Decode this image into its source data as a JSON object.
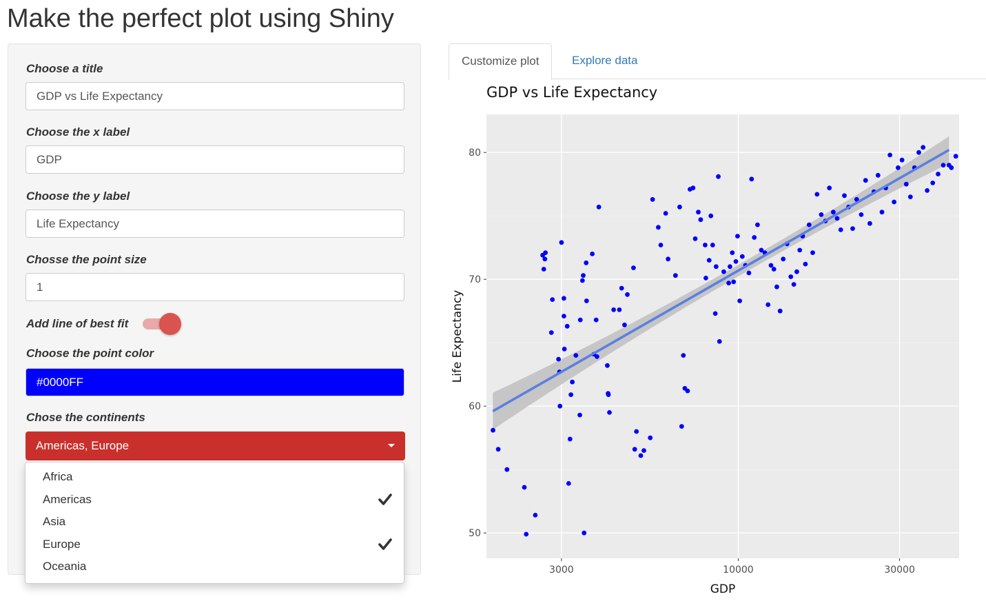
{
  "page": {
    "title": "Make the perfect plot using Shiny"
  },
  "sidebar": {
    "title_label": "Choose a title",
    "title_value": "GDP vs Life Expectancy",
    "xlabel_label": "Choose the x label",
    "xlabel_value": "GDP",
    "ylabel_label": "Choose the y label",
    "ylabel_value": "Life Expectancy",
    "size_label": "Chosse the point size",
    "size_value": "1",
    "fit_label": "Add line of best fit",
    "fit_enabled": true,
    "color_label": "Choose the point color",
    "color_value": "#0000FF",
    "continents_label": "Chose the continents",
    "continents_selected": "Americas, Europe",
    "continents_options": [
      {
        "label": "Africa",
        "checked": false
      },
      {
        "label": "Americas",
        "checked": true
      },
      {
        "label": "Asia",
        "checked": false
      },
      {
        "label": "Europe",
        "checked": true
      },
      {
        "label": "Oceania",
        "checked": false
      }
    ]
  },
  "colors": {
    "select_bg": "#c9302c",
    "toggle_accent": "#d9534f",
    "point_color": "#0000FF",
    "fit_line": "#5b7fe0",
    "panel_bg": "#ebebeb"
  },
  "icons": {
    "check": "check-icon",
    "caret": "caret-down-icon"
  },
  "tabs": [
    {
      "label": "Customize plot",
      "active": true
    },
    {
      "label": "Explore data",
      "active": false
    }
  ],
  "chart_data": {
    "type": "scatter",
    "title": "GDP vs Life Expectancy",
    "xlabel": "GDP",
    "ylabel": "Life Expectancy",
    "x_scale": "log10",
    "xlim": [
      1800,
      45000
    ],
    "ylim": [
      48,
      83
    ],
    "x_ticks": [
      3000,
      10000,
      30000
    ],
    "y_ticks": [
      50,
      60,
      70,
      80
    ],
    "grid": true,
    "trend_line": {
      "x": [
        1880,
        42000
      ],
      "y": [
        59.6,
        80.2
      ],
      "confidence_band": true
    },
    "points": [
      [
        1882,
        58.1
      ],
      [
        1950,
        56.6
      ],
      [
        2070,
        55.0
      ],
      [
        2330,
        53.6
      ],
      [
        2360,
        49.9
      ],
      [
        2510,
        51.4
      ],
      [
        2640,
        71.9
      ],
      [
        2680,
        71.6
      ],
      [
        2660,
        70.8
      ],
      [
        2690,
        72.1
      ],
      [
        2820,
        68.4
      ],
      [
        2800,
        65.8
      ],
      [
        3000,
        72.9
      ],
      [
        3050,
        68.5
      ],
      [
        3050,
        67.1
      ],
      [
        3120,
        66.3
      ],
      [
        3060,
        64.5
      ],
      [
        2940,
        63.7
      ],
      [
        2960,
        62.7
      ],
      [
        2970,
        60.0
      ],
      [
        3150,
        53.9
      ],
      [
        3180,
        57.4
      ],
      [
        3200,
        60.9
      ],
      [
        3230,
        61.9
      ],
      [
        3310,
        64.0
      ],
      [
        3500,
        50.0
      ],
      [
        3400,
        59.3
      ],
      [
        3410,
        66.8
      ],
      [
        3460,
        69.9
      ],
      [
        3480,
        70.3
      ],
      [
        3550,
        71.3
      ],
      [
        3700,
        72.0
      ],
      [
        3560,
        68.3
      ],
      [
        3800,
        66.8
      ],
      [
        3820,
        63.9
      ],
      [
        3740,
        64.1
      ],
      [
        3870,
        75.7
      ],
      [
        4100,
        63.2
      ],
      [
        4120,
        61.0
      ],
      [
        4130,
        60.9
      ],
      [
        4160,
        59.5
      ],
      [
        4280,
        67.6
      ],
      [
        4450,
        67.6
      ],
      [
        4520,
        69.3
      ],
      [
        4610,
        66.4
      ],
      [
        4700,
        68.8
      ],
      [
        4900,
        70.9
      ],
      [
        4940,
        56.6
      ],
      [
        5000,
        58.0
      ],
      [
        5150,
        56.1
      ],
      [
        5260,
        56.5
      ],
      [
        5490,
        57.5
      ],
      [
        5580,
        76.3
      ],
      [
        5800,
        74.1
      ],
      [
        5900,
        72.7
      ],
      [
        6100,
        75.2
      ],
      [
        6200,
        71.6
      ],
      [
        6520,
        70.3
      ],
      [
        6710,
        75.7
      ],
      [
        6800,
        58.4
      ],
      [
        6880,
        64.0
      ],
      [
        6950,
        61.4
      ],
      [
        7080,
        61.2
      ],
      [
        7200,
        77.1
      ],
      [
        7350,
        77.2
      ],
      [
        7460,
        73.2
      ],
      [
        7620,
        75.3
      ],
      [
        7740,
        74.7
      ],
      [
        7980,
        72.7
      ],
      [
        8020,
        70.1
      ],
      [
        8200,
        71.5
      ],
      [
        8300,
        75.0
      ],
      [
        8400,
        72.7
      ],
      [
        8550,
        67.3
      ],
      [
        8600,
        71.0
      ],
      [
        8800,
        65.1
      ],
      [
        8730,
        78.1
      ],
      [
        9060,
        70.6
      ],
      [
        9370,
        69.7
      ],
      [
        9450,
        71.0
      ],
      [
        9600,
        72.1
      ],
      [
        9690,
        69.8
      ],
      [
        9840,
        71.4
      ],
      [
        9950,
        73.4
      ],
      [
        10100,
        68.3
      ],
      [
        10280,
        71.8
      ],
      [
        10500,
        71.1
      ],
      [
        10750,
        70.5
      ],
      [
        10950,
        77.9
      ],
      [
        11150,
        73.3
      ],
      [
        11400,
        74.3
      ],
      [
        11700,
        72.3
      ],
      [
        11990,
        72.1
      ],
      [
        12250,
        68.0
      ],
      [
        12500,
        71.1
      ],
      [
        12750,
        70.8
      ],
      [
        13000,
        69.4
      ],
      [
        13300,
        67.5
      ],
      [
        13580,
        71.6
      ],
      [
        13940,
        72.8
      ],
      [
        14300,
        70.2
      ],
      [
        14600,
        69.6
      ],
      [
        14900,
        70.6
      ],
      [
        15200,
        72.3
      ],
      [
        15500,
        73.4
      ],
      [
        15800,
        71.2
      ],
      [
        16200,
        74.3
      ],
      [
        16600,
        72.1
      ],
      [
        17100,
        76.7
      ],
      [
        17600,
        75.1
      ],
      [
        18100,
        74.6
      ],
      [
        18600,
        77.2
      ],
      [
        19100,
        75.3
      ],
      [
        19600,
        74.8
      ],
      [
        20100,
        73.9
      ],
      [
        20600,
        76.6
      ],
      [
        21200,
        75.7
      ],
      [
        21800,
        74.0
      ],
      [
        22400,
        76.3
      ],
      [
        23100,
        75.1
      ],
      [
        23800,
        77.8
      ],
      [
        24500,
        74.4
      ],
      [
        25200,
        76.9
      ],
      [
        25900,
        78.2
      ],
      [
        26600,
        75.3
      ],
      [
        27300,
        77.2
      ],
      [
        28100,
        79.8
      ],
      [
        28900,
        76.1
      ],
      [
        29700,
        78.8
      ],
      [
        30500,
        79.4
      ],
      [
        31400,
        77.5
      ],
      [
        32300,
        76.5
      ],
      [
        33200,
        78.8
      ],
      [
        34200,
        80.0
      ],
      [
        35200,
        80.4
      ],
      [
        36200,
        77.0
      ],
      [
        37600,
        77.6
      ],
      [
        39000,
        78.3
      ],
      [
        40400,
        79.0
      ],
      [
        42000,
        79.0
      ],
      [
        42700,
        78.8
      ],
      [
        44000,
        79.7
      ]
    ]
  }
}
